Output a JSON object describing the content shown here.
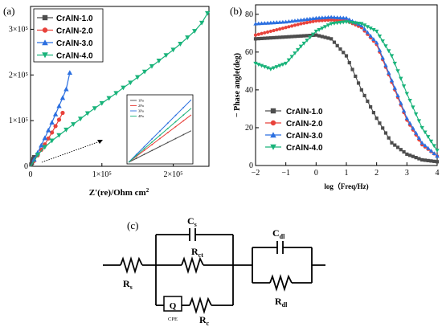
{
  "panel_a": {
    "tag": "(a)",
    "xlabel": "Z'(re)/Ohm cm2",
    "x_ticks": [
      "0",
      "1×10⁵",
      "2×10⁵"
    ],
    "y_ticks": [
      "0",
      "1×10⁵",
      "2×10⁵",
      "3×10⁵"
    ],
    "inset_legend": [
      "1Pa",
      "2Pa",
      "3Pa",
      "4Pa"
    ]
  },
  "panel_b": {
    "tag": "(b)",
    "xlabel": "log（Freq/Hz)",
    "ylabel": "− Phase angle(deg)",
    "x_ticks": [
      "−2",
      "−1",
      "0",
      "1",
      "2",
      "3",
      "4"
    ],
    "y_ticks": [
      "0",
      "20",
      "40",
      "60",
      "80"
    ]
  },
  "panel_c": {
    "tag": "(c)",
    "labels": {
      "rs": "R",
      "rs_sub": "s",
      "cs": "C",
      "cs_sub": "s",
      "rct": "R",
      "rct_sub": "ct",
      "q": "Q",
      "cpe": "CPE",
      "rc": "R",
      "rc_sub": "c",
      "cdl": "C",
      "cdl_sub": "dl",
      "rdl": "R",
      "rdl_sub": "dl"
    }
  },
  "colors": {
    "CrAlN-1.0": "#4d4d4d",
    "CrAlN-2.0": "#e8423b",
    "CrAlN-3.0": "#2b6fe0",
    "CrAlN-4.0": "#19b37a"
  },
  "chart_data": [
    {
      "type": "scatter",
      "panel": "a",
      "xlabel": "Z'(re)/Ohm cm2",
      "ylabel": "",
      "xlim": [
        0,
        250000
      ],
      "ylim": [
        0,
        350000
      ],
      "legend_position": "top-left",
      "series": [
        {
          "name": "CrAlN-1.0",
          "marker": "square",
          "x": [
            0,
            1000,
            2000,
            3000,
            4000,
            5000
          ],
          "y": [
            0,
            4000,
            8000,
            12000,
            16000,
            20000
          ]
        },
        {
          "name": "CrAlN-2.0",
          "marker": "circle",
          "x": [
            0,
            5000,
            10000,
            15000,
            20000,
            25000,
            30000,
            35000,
            40000,
            45000
          ],
          "y": [
            0,
            12000,
            24000,
            36000,
            48000,
            61000,
            74000,
            88000,
            102000,
            117000
          ]
        },
        {
          "name": "CrAlN-3.0",
          "marker": "triangle-up",
          "x": [
            0,
            5000,
            10000,
            15000,
            20000,
            25000,
            30000,
            35000,
            40000,
            45000,
            50000,
            55000
          ],
          "y": [
            0,
            15000,
            30000,
            46000,
            62000,
            79000,
            96000,
            114000,
            132000,
            150000,
            169000,
            205000
          ]
        },
        {
          "name": "CrAlN-4.0",
          "marker": "triangle-down",
          "x": [
            0,
            10000,
            20000,
            30000,
            40000,
            50000,
            60000,
            70000,
            80000,
            90000,
            100000,
            110000,
            120000,
            130000,
            140000,
            150000,
            160000,
            170000,
            180000,
            190000,
            200000,
            210000,
            220000,
            230000,
            240000,
            248000
          ],
          "y": [
            0,
            25000,
            42000,
            56000,
            68000,
            80000,
            92000,
            104000,
            116000,
            127000,
            138000,
            149000,
            160000,
            172000,
            183000,
            195000,
            207000,
            219000,
            231000,
            243000,
            255000,
            268000,
            282000,
            296000,
            314000,
            335000
          ]
        }
      ]
    },
    {
      "type": "line",
      "panel": "a-inset",
      "xlabel": "",
      "ylabel": "",
      "series": [
        {
          "name": "1Pa",
          "x": [
            0,
            1
          ],
          "y": [
            0,
            0.48
          ]
        },
        {
          "name": "2Pa",
          "x": [
            0,
            1
          ],
          "y": [
            0,
            0.72
          ]
        },
        {
          "name": "3Pa",
          "x": [
            0,
            1
          ],
          "y": [
            0,
            0.95
          ]
        },
        {
          "name": "4Pa",
          "x": [
            0,
            1
          ],
          "y": [
            0,
            0.82
          ]
        }
      ]
    },
    {
      "type": "line",
      "panel": "b",
      "xlabel": "log（Freq/Hz)",
      "ylabel": "− Phase angle(deg)",
      "xlim": [
        -2,
        4
      ],
      "ylim": [
        0,
        85
      ],
      "legend_position": "bottom-center",
      "x": [
        -2.0,
        -1.5,
        -1.0,
        -0.5,
        0.0,
        0.5,
        1.0,
        1.5,
        2.0,
        2.5,
        3.0,
        3.5,
        4.0
      ],
      "series": [
        {
          "name": "CrAlN-1.0",
          "marker": "square",
          "values": [
            67,
            67.5,
            68,
            68.5,
            69,
            67,
            58,
            40,
            25,
            12,
            6,
            3,
            2
          ]
        },
        {
          "name": "CrAlN-2.0",
          "marker": "circle",
          "values": [
            69,
            71,
            73,
            75,
            76.5,
            77,
            76.5,
            73,
            64,
            44,
            24,
            11,
            5
          ]
        },
        {
          "name": "CrAlN-3.0",
          "marker": "triangle-up",
          "values": [
            75,
            75.5,
            76,
            77,
            78,
            78.5,
            78,
            74,
            65,
            45,
            25,
            12,
            5
          ]
        },
        {
          "name": "CrAlN-4.0",
          "marker": "triangle-down",
          "values": [
            54,
            51,
            54,
            63,
            71,
            75,
            76,
            75,
            71,
            58,
            38,
            20,
            8
          ]
        }
      ]
    }
  ]
}
